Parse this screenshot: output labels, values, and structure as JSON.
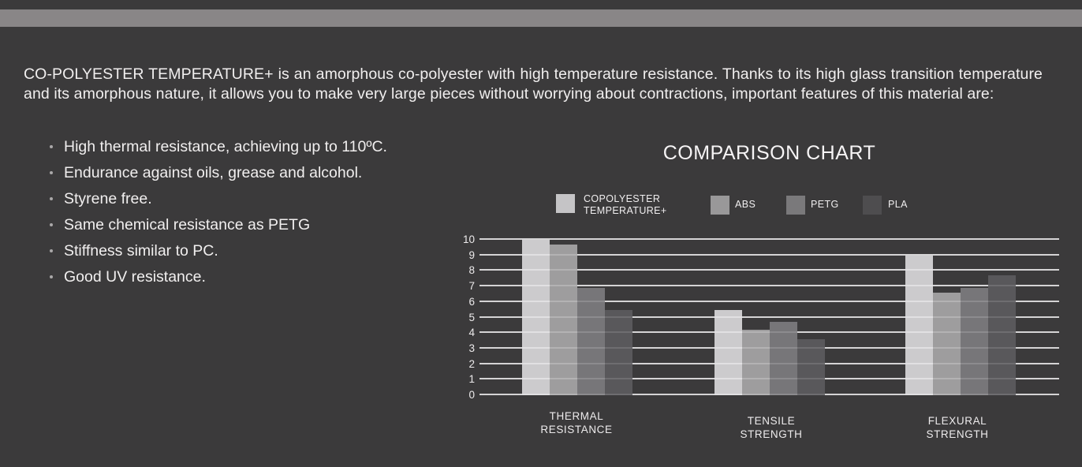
{
  "intro": {
    "paragraph": "CO-POLYESTER TEMPERATURE+ is an amorphous co-polyester with high temperature resistance. Thanks to its high glass transition temperature and its amorphous nature, it allows you to make very large pieces without worrying about contractions, important features of this material are:",
    "features": [
      "High thermal resistance, achieving up to 110ºC.",
      "Endurance against oils, grease and alcohol.",
      "Styrene free.",
      "Same chemical resistance as PETG",
      "Stiffness similar to PC.",
      "Good UV resistance."
    ]
  },
  "chart_data": {
    "type": "bar",
    "title": "COMPARISON CHART",
    "categories": [
      "THERMAL RESISTANCE",
      "TENSILE STRENGTH",
      "FLEXURAL STRENGTH"
    ],
    "series": [
      {
        "name": "COPOLYESTER TEMPERATURE+",
        "legend_label": "COPOLYESTER\nTEMPERATURE+",
        "color": "#c5c4c6",
        "bar_color": "rgba(226,225,227,0.87)",
        "values": [
          10,
          5.5,
          9
        ]
      },
      {
        "name": "ABS",
        "legend_label": "ABS",
        "color": "#999899",
        "bar_color": "rgba(173,172,174,0.87)",
        "values": [
          9.7,
          4.2,
          6.6
        ]
      },
      {
        "name": "PETG",
        "legend_label": "PETG",
        "color": "#7a797b",
        "bar_color": "rgba(129,128,131,0.87)",
        "values": [
          6.9,
          4.7,
          6.9
        ]
      },
      {
        "name": "PLA",
        "legend_label": "PLA",
        "color": "#4e4d4f",
        "bar_color": "rgba(94,93,96,0.87)",
        "values": [
          5.5,
          3.6,
          7.7
        ]
      }
    ],
    "ylim": [
      0,
      10
    ],
    "ytick_step": 1,
    "grid": true,
    "legend_position": "top"
  },
  "colors": {
    "background": "#3b3a3b",
    "top_bar": "#898687",
    "text": "#f0eeee",
    "gridline": "#d5d4d5"
  }
}
